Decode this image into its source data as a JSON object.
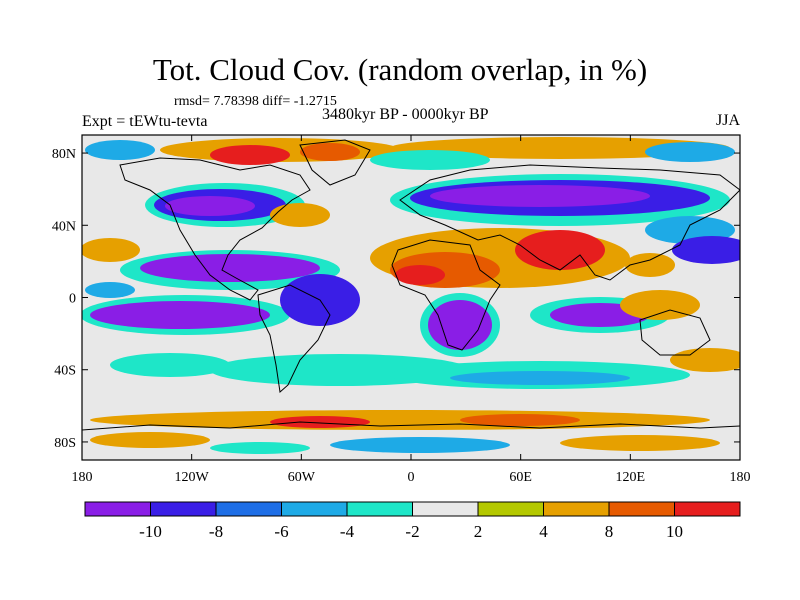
{
  "header": {
    "title": "Tot. Cloud Cov. (random overlap, in %)",
    "stats": "rmsd= 7.78398 diff= -1.2715",
    "experiment": "Expt = tEWtu-tevta",
    "period": "3480kyr BP - 0000kyr BP",
    "season": "JJA"
  },
  "map": {
    "lat_ticks": [
      "80N",
      "40N",
      "0",
      "40S",
      "80S"
    ],
    "lat_values": [
      80,
      40,
      0,
      -40,
      -80
    ],
    "lon_ticks": [
      "180",
      "120W",
      "60W",
      "0",
      "60E",
      "120E",
      "180"
    ],
    "lon_values": [
      -180,
      -120,
      -60,
      0,
      60,
      120,
      180
    ],
    "background_color": "#e8e8e8"
  },
  "colorbar": {
    "labels": [
      "-10",
      "-8",
      "-6",
      "-4",
      "-2",
      "2",
      "4",
      "8",
      "10"
    ],
    "colors": [
      "#8a1ee6",
      "#3a1ee6",
      "#1e6ee6",
      "#1eaae6",
      "#1ee6c8",
      "#e8e8e8",
      "#b4c800",
      "#e6a000",
      "#e65a00",
      "#e61e1e"
    ]
  }
}
